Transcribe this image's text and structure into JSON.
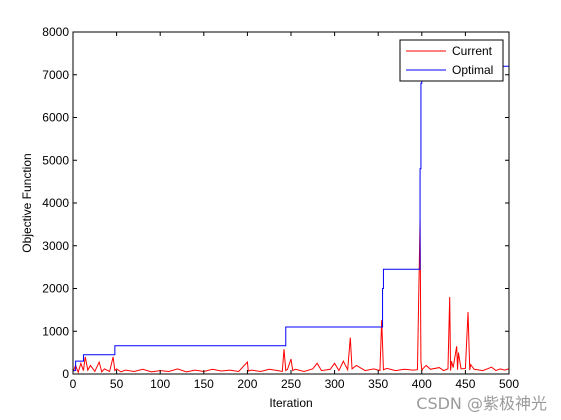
{
  "chart_data": {
    "type": "line",
    "title": "",
    "xlabel": "Iteration",
    "ylabel": "Objective Function",
    "xlim": [
      0,
      500
    ],
    "ylim": [
      0,
      8000
    ],
    "xticks": [
      0,
      50,
      100,
      150,
      200,
      250,
      300,
      350,
      400,
      450,
      500
    ],
    "yticks": [
      0,
      1000,
      2000,
      3000,
      4000,
      5000,
      6000,
      7000,
      8000
    ],
    "grid": false,
    "legend_position": "top-right",
    "series": [
      {
        "name": "Current",
        "color": "#ff0000",
        "x": [
          0,
          3,
          6,
          9,
          12,
          14,
          17,
          20,
          25,
          30,
          33,
          36,
          42,
          46,
          48,
          50,
          55,
          60,
          70,
          80,
          90,
          100,
          110,
          120,
          130,
          140,
          150,
          160,
          170,
          180,
          190,
          200,
          201,
          205,
          215,
          225,
          235,
          240,
          242,
          244,
          246,
          250,
          252,
          255,
          265,
          275,
          280,
          285,
          295,
          300,
          305,
          310,
          315,
          318,
          320,
          325,
          335,
          345,
          352,
          354,
          356,
          360,
          370,
          380,
          390,
          395,
          398,
          399,
          400,
          401,
          405,
          410,
          420,
          425,
          430,
          432,
          433,
          434,
          436,
          440,
          441,
          442,
          445,
          450,
          453,
          455,
          456,
          460,
          470,
          480,
          485,
          490,
          495,
          500
        ],
        "y": [
          50,
          200,
          40,
          250,
          80,
          400,
          90,
          200,
          60,
          280,
          50,
          120,
          60,
          400,
          80,
          120,
          50,
          90,
          60,
          110,
          50,
          80,
          60,
          120,
          50,
          90,
          60,
          110,
          70,
          90,
          60,
          280,
          70,
          90,
          60,
          110,
          80,
          60,
          580,
          80,
          110,
          350,
          80,
          110,
          60,
          120,
          250,
          80,
          110,
          250,
          80,
          300,
          100,
          850,
          120,
          200,
          80,
          120,
          80,
          1260,
          100,
          130,
          80,
          110,
          90,
          100,
          3600,
          300,
          80,
          120,
          200,
          110,
          150,
          80,
          120,
          1800,
          80,
          300,
          150,
          650,
          100,
          500,
          120,
          130,
          1450,
          90,
          220,
          110,
          80,
          160,
          80,
          120,
          90,
          120
        ]
      },
      {
        "name": "Optimal",
        "color": "#0000ff",
        "x": [
          0,
          3,
          3,
          12,
          12,
          48,
          48,
          244,
          244,
          355,
          355,
          356,
          356,
          398,
          398,
          399,
          399,
          400,
          400,
          500
        ],
        "y": [
          80,
          80,
          300,
          300,
          450,
          450,
          660,
          660,
          1100,
          1100,
          2000,
          2000,
          2450,
          2450,
          4800,
          4800,
          6800,
          6800,
          7200,
          7200
        ]
      }
    ]
  },
  "watermark": "CSDN @紫极神光"
}
